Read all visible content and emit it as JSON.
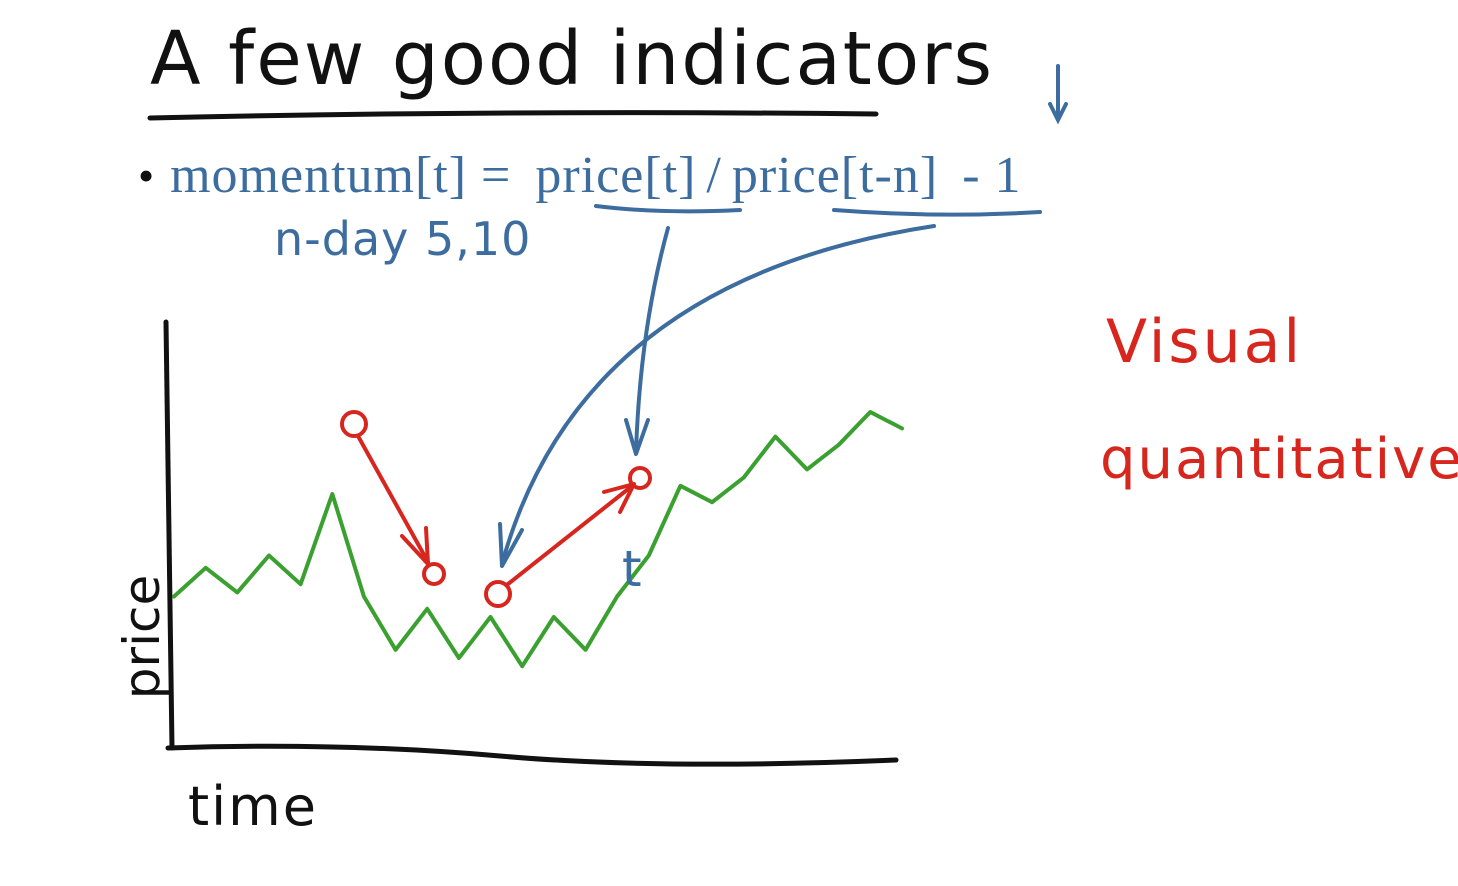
{
  "title": "A few good indicators",
  "formula": {
    "bullet": "•",
    "label": "momentum[t] =",
    "numerator": "price[t]",
    "divider": "/",
    "denominator": "price[t-n]",
    "suffix": "- 1"
  },
  "nday_note": "n-day 5,10",
  "side_notes": {
    "visual": "Visual",
    "quantitative": "quantitative"
  },
  "chart_data": {
    "type": "line",
    "xlabel": "time",
    "ylabel": "price",
    "annotations": [
      "t"
    ],
    "series": [
      {
        "values": [
          0.35,
          0.42,
          0.36,
          0.45,
          0.38,
          0.6,
          0.35,
          0.22,
          0.32,
          0.2,
          0.3,
          0.18,
          0.3,
          0.22,
          0.35,
          0.45,
          0.62,
          0.58,
          0.64,
          0.74,
          0.66,
          0.72,
          0.8,
          0.76
        ]
      }
    ],
    "colors": {
      "price_line": "#3aa02f",
      "momentum_arrows": "#d7261e",
      "formula": "#3d6c9e",
      "axes": "#111111"
    }
  }
}
